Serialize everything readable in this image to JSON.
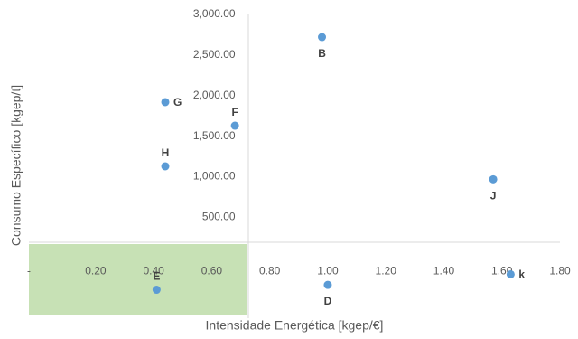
{
  "chart_data": {
    "type": "scatter",
    "title": "",
    "xlabel": "Intensidade Energética [kgep/€]",
    "ylabel": "Consumo Específico [kgep/t]",
    "xlim": [
      -0.03,
      1.8
    ],
    "ylim": [
      -750,
      3000
    ],
    "x_axis_crossing_y": 0,
    "y_axis_crossing_x": 0.75,
    "x_ticks": [
      {
        "value": -0.03,
        "label": "-"
      },
      {
        "value": 0.2,
        "label": "0.20"
      },
      {
        "value": 0.4,
        "label": "0.40"
      },
      {
        "value": 0.6,
        "label": "0.60"
      },
      {
        "value": 0.8,
        "label": "0.80"
      },
      {
        "value": 1.0,
        "label": "1.00"
      },
      {
        "value": 1.2,
        "label": "1.20"
      },
      {
        "value": 1.4,
        "label": "1.40"
      },
      {
        "value": 1.6,
        "label": "1.60"
      },
      {
        "value": 1.8,
        "label": "1.80"
      }
    ],
    "y_ticks": [
      {
        "value": 500,
        "label": "500.00"
      },
      {
        "value": 1000,
        "label": "1,000.00"
      },
      {
        "value": 1500,
        "label": "1,500.00"
      },
      {
        "value": 2000,
        "label": "2,000.00"
      },
      {
        "value": 2500,
        "label": "2,500.00"
      },
      {
        "value": 3000,
        "label": "3,000.00"
      }
    ],
    "points": [
      {
        "label": "B",
        "x": 0.98,
        "y": 2710,
        "label_pos": "below"
      },
      {
        "label": "G",
        "x": 0.44,
        "y": 1910,
        "label_pos": "right"
      },
      {
        "label": "F",
        "x": 0.68,
        "y": 1620,
        "label_pos": "above"
      },
      {
        "label": "H",
        "x": 0.44,
        "y": 1120,
        "label_pos": "above"
      },
      {
        "label": "J",
        "x": 1.57,
        "y": 960,
        "label_pos": "below"
      },
      {
        "label": "k",
        "x": 1.63,
        "y": -210,
        "label_pos": "right"
      },
      {
        "label": "D",
        "x": 1.0,
        "y": -340,
        "label_pos": "below"
      },
      {
        "label": "E",
        "x": 0.41,
        "y": -400,
        "label_pos": "above"
      }
    ],
    "grid": false,
    "legend": "none",
    "colors": {
      "marker": "#5b9bd5",
      "highlight_region": "#a9d18e",
      "axis": "#d9d9d9",
      "text": "#595959"
    }
  }
}
